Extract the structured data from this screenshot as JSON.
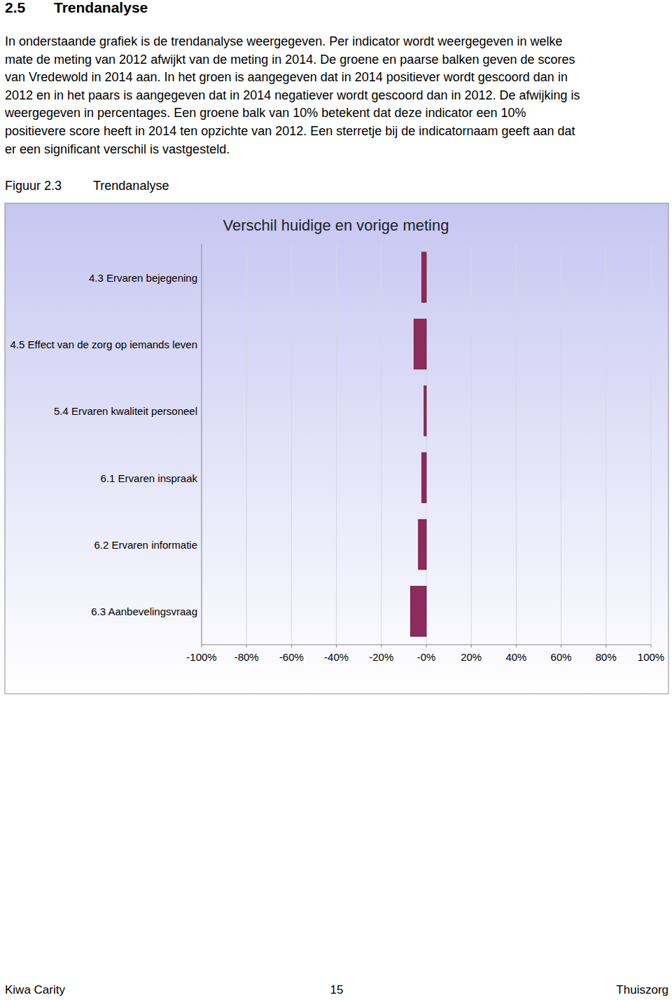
{
  "document": {
    "header": {
      "number": "2.5",
      "title": "Trendanalyse"
    },
    "paragraph_lines": [
      "In onderstaande grafiek is de trendanalyse weergegeven. Per indicator wordt weergegeven in welke",
      "mate de meting van 2012 afwijkt van de meting in 2014. De groene en paarse balken geven de scores",
      "van Vredewold in 2014 aan. In het groen is aangegeven dat in 2014 positiever wordt gescoord dan in",
      "2012 en in het paars is aangegeven dat in 2014 negatiever wordt gescoord dan in 2012. De afwijking is",
      "weergegeven in percentages. Een groene balk van 10% betekent dat deze indicator een 10%",
      "positievere score heeft in 2014 ten opzichte van 2012. Een sterretje bij de indicatornaam geeft aan dat",
      "er een significant verschil is vastgesteld."
    ],
    "figure": {
      "number": "Figuur 2.3",
      "caption": "Trendanalyse"
    },
    "footer": {
      "left": "Kiwa Carity",
      "center": "15",
      "right": "Thuiszorg"
    }
  },
  "chart_data": {
    "type": "bar",
    "orientation": "horizontal",
    "title": "Verschil huidige en vorige meting",
    "categories": [
      "4.3 Ervaren bejegening",
      "4.5 Effect van de zorg op iemands leven",
      "5.4 Ervaren kwaliteit personeel",
      "6.1 Ervaren inspraak",
      "6.2 Ervaren informatie",
      "6.3 Aanbevelingsvraag"
    ],
    "values": [
      -2,
      -5.5,
      -1,
      -2,
      -3.5,
      -7
    ],
    "color": "#8e2a5c",
    "xlim": [
      -100,
      100
    ],
    "xticks": [
      {
        "value": -100,
        "label": "-100%"
      },
      {
        "value": -80,
        "label": "-80%"
      },
      {
        "value": -60,
        "label": "-60%"
      },
      {
        "value": -40,
        "label": "-40%"
      },
      {
        "value": -20,
        "label": "-20%"
      },
      {
        "value": 0,
        "label": "-0%"
      },
      {
        "value": 20,
        "label": "20%"
      },
      {
        "value": 40,
        "label": "40%"
      },
      {
        "value": 60,
        "label": "60%"
      },
      {
        "value": 80,
        "label": "80%"
      },
      {
        "value": 100,
        "label": "100%"
      }
    ],
    "grid": true
  }
}
